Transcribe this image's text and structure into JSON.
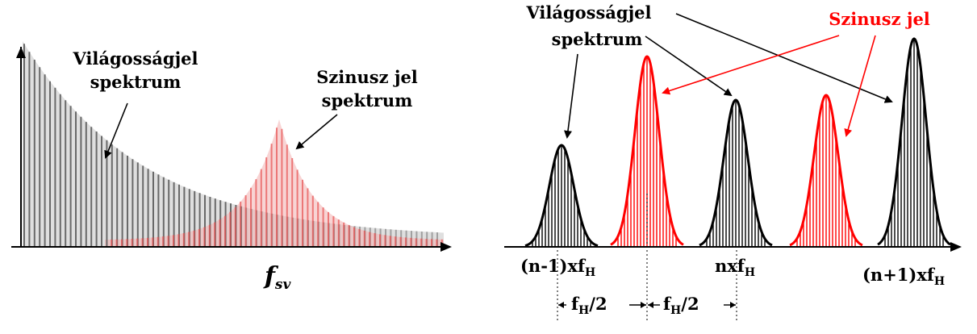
{
  "left_panel": {
    "luma_label_line1": "Világosságjel",
    "luma_label_line2": "spektrum",
    "chroma_label_line1": "Szinusz jel",
    "chroma_label_line2": "spektrum",
    "axis_label_main": "f",
    "axis_label_sub": "sv"
  },
  "right_panel": {
    "luma_label_line1": "Világosságjel",
    "luma_label_line2": "spektrum",
    "chroma_label": "Szinusz jel",
    "tick_prev_main": "(n-1)xf",
    "tick_prev_sub": "H",
    "tick_n_main": "nxf",
    "tick_n_sub": "H",
    "tick_next_main": "(n+1)xf",
    "tick_next_sub": "H",
    "half_spacing_main": "f",
    "half_spacing_sub": "H",
    "half_spacing_suffix": "/2"
  },
  "colors": {
    "luma": "#555555",
    "luma_fill": "#b8b8b8",
    "chroma": "#e85050",
    "chroma_fill": "#f2b0b0",
    "black_peak": "#000000",
    "red_peak": "#ff0000"
  }
}
